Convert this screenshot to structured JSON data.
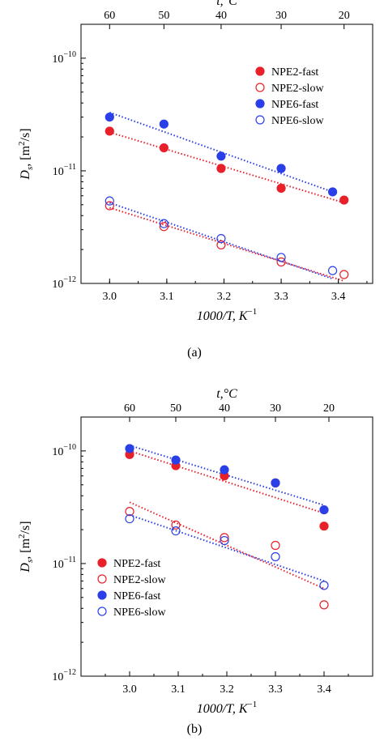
{
  "chart_data": [
    {
      "panel_label": "(a)",
      "type": "scatter",
      "y_scale": "log",
      "xlabel": "1000/T, K",
      "xlabel_exp": "−1",
      "ylabel": "D",
      "ylabel_sub": "s",
      "ylabel_unit": ", [m",
      "ylabel_unit_exp": "2",
      "ylabel_unit_end": "/s]",
      "top_axis_label": "t,°C",
      "xlim": [
        2.95,
        3.46
      ],
      "ylim": [
        1e-12,
        2e-10
      ],
      "x_ticks": [
        3.0,
        3.1,
        3.2,
        3.3,
        3.4
      ],
      "x_tick_labels": [
        "3.0",
        "3.1",
        "3.2",
        "3.3",
        "3.4"
      ],
      "y_ticks": [
        1e-12,
        1e-11,
        1e-10
      ],
      "y_tick_labels": [
        {
          "base": "10",
          "exp": "−12"
        },
        {
          "base": "10",
          "exp": "−11"
        },
        {
          "base": "10",
          "exp": "−10"
        }
      ],
      "top_ticks": [
        60,
        50,
        40,
        30,
        20
      ],
      "top_tick_labels": [
        "60",
        "50",
        "40",
        "30",
        "20"
      ],
      "top_tick_x": [
        3.0,
        3.095,
        3.195,
        3.3,
        3.41
      ],
      "legend_position": "top-right",
      "series": [
        {
          "name": "NPE2-fast",
          "color": "#e8202a",
          "filled": true,
          "x": [
            3.0,
            3.095,
            3.195,
            3.3,
            3.41
          ],
          "y": [
            2.25e-11,
            1.6e-11,
            1.05e-11,
            7e-12,
            5.5e-12
          ],
          "fit": [
            [
              3.0,
              2.2e-11
            ],
            [
              3.41,
              5.2e-12
            ]
          ]
        },
        {
          "name": "NPE2-slow",
          "color": "#e8202a",
          "filled": false,
          "x": [
            3.0,
            3.095,
            3.195,
            3.3,
            3.41
          ],
          "y": [
            4.9e-12,
            3.2e-12,
            2.2e-12,
            1.55e-12,
            1.2e-12
          ],
          "fit": [
            [
              3.0,
              4.7e-12
            ],
            [
              3.41,
              1.05e-12
            ]
          ]
        },
        {
          "name": "NPE6-fast",
          "color": "#2a3fe8",
          "filled": true,
          "x": [
            3.0,
            3.095,
            3.195,
            3.3,
            3.39
          ],
          "y": [
            3e-11,
            2.6e-11,
            1.35e-11,
            1.05e-11,
            6.5e-12
          ],
          "fit": [
            [
              3.0,
              3.3e-11
            ],
            [
              3.39,
              6.5e-12
            ]
          ]
        },
        {
          "name": "NPE6-slow",
          "color": "#2a3fe8",
          "filled": false,
          "x": [
            3.0,
            3.095,
            3.195,
            3.3,
            3.39
          ],
          "y": [
            5.4e-12,
            3.4e-12,
            2.5e-12,
            1.7e-12,
            1.3e-12
          ],
          "fit": [
            [
              3.0,
              5.2e-12
            ],
            [
              3.39,
              1.1e-12
            ]
          ]
        }
      ]
    },
    {
      "panel_label": "(b)",
      "type": "scatter",
      "y_scale": "log",
      "xlabel": "1000/T, K",
      "xlabel_exp": "−1",
      "ylabel": "D",
      "ylabel_sub": "s",
      "ylabel_unit": ", [m",
      "ylabel_unit_exp": "2",
      "ylabel_unit_end": "/s]",
      "top_axis_label": "t,°C",
      "xlim": [
        2.9,
        3.5
      ],
      "ylim": [
        1e-12,
        2e-10
      ],
      "x_ticks": [
        3.0,
        3.1,
        3.2,
        3.3,
        3.4
      ],
      "x_tick_labels": [
        "3.0",
        "3.1",
        "3.2",
        "3.3",
        "3.4"
      ],
      "y_ticks": [
        1e-12,
        1e-11,
        1e-10
      ],
      "y_tick_labels": [
        {
          "base": "10",
          "exp": "−12"
        },
        {
          "base": "10",
          "exp": "−11"
        },
        {
          "base": "10",
          "exp": "−10"
        }
      ],
      "top_ticks": [
        60,
        50,
        40,
        30,
        20
      ],
      "top_tick_labels": [
        "60",
        "50",
        "40",
        "30",
        "20"
      ],
      "top_tick_x": [
        3.0,
        3.095,
        3.195,
        3.3,
        3.41
      ],
      "legend_position": "bottom-left",
      "series": [
        {
          "name": "NPE2-fast",
          "color": "#e8202a",
          "filled": true,
          "x": [
            3.0,
            3.095,
            3.195,
            3.3,
            3.4
          ],
          "y": [
            9.3e-11,
            7.4e-11,
            6e-11,
            5.2e-11,
            2.15e-11
          ],
          "fit": [
            [
              3.0,
              1e-10
            ],
            [
              3.4,
              2.8e-11
            ]
          ]
        },
        {
          "name": "NPE2-slow",
          "color": "#e8202a",
          "filled": false,
          "x": [
            3.0,
            3.095,
            3.195,
            3.3,
            3.4
          ],
          "y": [
            2.9e-11,
            2.2e-11,
            1.7e-11,
            1.45e-11,
            4.3e-12
          ],
          "fit": [
            [
              3.0,
              3.5e-11
            ],
            [
              3.4,
              6e-12
            ]
          ]
        },
        {
          "name": "NPE6-fast",
          "color": "#2a3fe8",
          "filled": true,
          "x": [
            3.0,
            3.095,
            3.195,
            3.3,
            3.4
          ],
          "y": [
            1.05e-10,
            8.3e-11,
            6.8e-11,
            5.2e-11,
            3e-11
          ],
          "fit": [
            [
              3.0,
              1.12e-10
            ],
            [
              3.4,
              3.3e-11
            ]
          ]
        },
        {
          "name": "NPE6-slow",
          "color": "#2a3fe8",
          "filled": false,
          "x": [
            3.0,
            3.095,
            3.195,
            3.3,
            3.4
          ],
          "y": [
            2.5e-11,
            1.95e-11,
            1.6e-11,
            1.15e-11,
            6.4e-12
          ],
          "fit": [
            [
              3.0,
              2.7e-11
            ],
            [
              3.4,
              7e-12
            ]
          ]
        }
      ]
    }
  ]
}
